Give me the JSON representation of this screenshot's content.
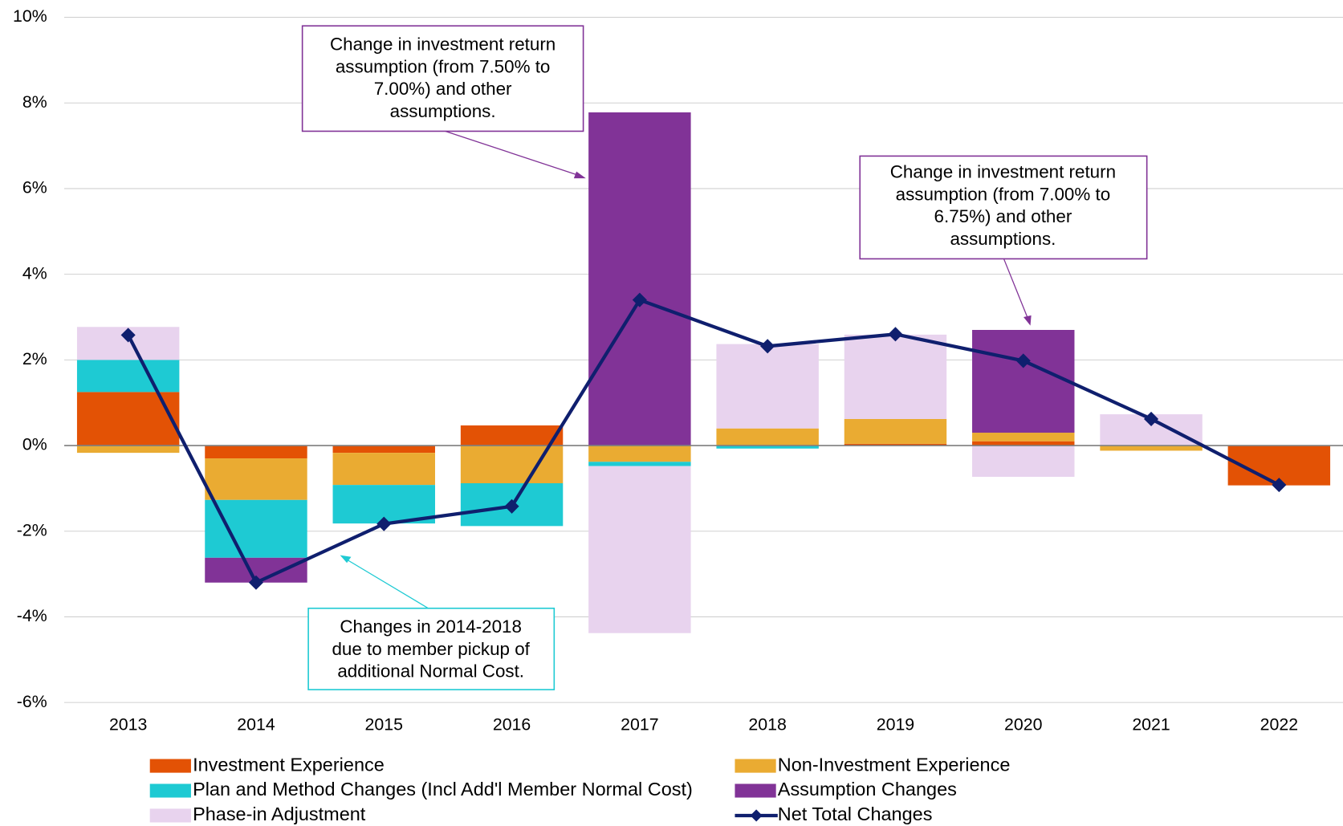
{
  "chart_data": {
    "type": "bar",
    "categories": [
      "2013",
      "2014",
      "2015",
      "2016",
      "2017",
      "2018",
      "2019",
      "2020",
      "2021",
      "2022"
    ],
    "series": [
      {
        "name": "Investment Experience",
        "color": "#e35205",
        "values": [
          1.25,
          -0.3,
          -0.17,
          0.47,
          0,
          0,
          0.04,
          0.1,
          0,
          -0.93
        ]
      },
      {
        "name": "Non-Investment Experience",
        "color": "#eaab32",
        "values": [
          -0.17,
          -0.97,
          -0.75,
          -0.88,
          -0.38,
          0.4,
          0.58,
          0.2,
          -0.12,
          0
        ]
      },
      {
        "name": "Plan and Method Changes (Incl Add'l Member Normal Cost)",
        "color": "#1ecad3",
        "values": [
          0.75,
          -1.35,
          -0.9,
          -1.0,
          -0.1,
          -0.07,
          0,
          0,
          0,
          0
        ]
      },
      {
        "name": "Assumption Changes",
        "color": "#813397",
        "values": [
          0,
          -0.58,
          0,
          0,
          7.78,
          0,
          0,
          2.4,
          0,
          0
        ]
      },
      {
        "name": "Phase-in Adjustment",
        "color": "#e8d3ee",
        "values": [
          0.77,
          0,
          0,
          0,
          -3.9,
          1.97,
          1.97,
          -0.73,
          0.73,
          0
        ]
      },
      {
        "name": "Net Total Changes",
        "type": "line",
        "color": "#0f1f6e",
        "values": [
          2.58,
          -3.2,
          -1.83,
          -1.42,
          3.4,
          2.32,
          2.6,
          1.98,
          0.62,
          -0.92
        ]
      }
    ],
    "stacked": true,
    "ylim": [
      -6,
      10
    ],
    "yticks": [
      {
        "value": -6,
        "label": "-6%"
      },
      {
        "value": -4,
        "label": "-4%"
      },
      {
        "value": -2,
        "label": "-2%"
      },
      {
        "value": 0,
        "label": "0%"
      },
      {
        "value": 2,
        "label": "2%"
      },
      {
        "value": 4,
        "label": "4%"
      },
      {
        "value": 6,
        "label": "6%"
      },
      {
        "value": 8,
        "label": "8%"
      },
      {
        "value": 10,
        "label": "10%"
      }
    ],
    "grid": true,
    "legend": "bottom",
    "annotations": [
      [
        "Change in investment return",
        "assumption (from 7.50% to",
        "7.00%) and other",
        "assumptions."
      ],
      [
        "Change in investment return",
        "assumption (from 7.00% to",
        "6.75%) and other",
        "assumptions."
      ],
      [
        "Changes in 2014-2018",
        "due to member pickup of",
        "additional Normal Cost."
      ]
    ]
  }
}
